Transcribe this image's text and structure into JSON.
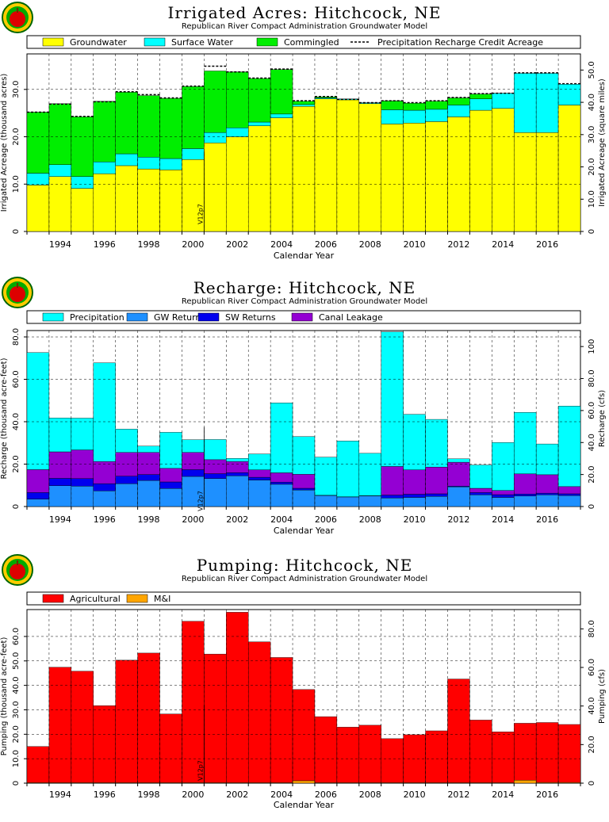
{
  "chart_data": [
    {
      "type": "bar",
      "title": "Irrigated Acres: Hitchcock, NE",
      "subtitle": "Republican River Compact Administration Groundwater Model",
      "xlabel": "Calendar Year",
      "ylabel": "Irrigated Acreage (thousand acres)",
      "y2label": "Irrigated Acreage (square miles)",
      "model_tag": "V12p7",
      "ylim": [
        0,
        37.5
      ],
      "yticks": [
        0,
        10.0,
        20.0,
        30.0
      ],
      "y2ticks": [
        "0",
        "10.0",
        "20.0",
        "30.0",
        "40.0",
        "50.0"
      ],
      "legend": [
        {
          "name": "Groundwater",
          "color": "#ffff00"
        },
        {
          "name": "Surface Water",
          "color": "#00ffff"
        },
        {
          "name": "Commingled",
          "color": "#00ee00"
        },
        {
          "name": "Precipitation Recharge Credit Acreage",
          "color": "dashed"
        }
      ],
      "x": [
        1993,
        1994,
        1995,
        1996,
        1997,
        1998,
        1999,
        2000,
        2001,
        2002,
        2003,
        2004,
        2005,
        2006,
        2007,
        2008,
        2009,
        2010,
        2011,
        2012,
        2013,
        2014,
        2015,
        2016,
        2017
      ],
      "xticks": [
        "1994",
        "1996",
        "1998",
        "2000",
        "2002",
        "2004",
        "2006",
        "2008",
        "2010",
        "2012",
        "2014",
        "2016"
      ],
      "series": [
        {
          "name": "Groundwater",
          "color": "#ffff00",
          "values": [
            9.8,
            11.6,
            9.1,
            12.2,
            13.9,
            13.2,
            13.0,
            15.2,
            18.7,
            20.0,
            22.3,
            24.0,
            26.4,
            28.0,
            27.8,
            27.0,
            22.7,
            22.9,
            23.2,
            24.2,
            25.6,
            26.0,
            20.9,
            20.9,
            26.7
          ]
        },
        {
          "name": "Surface Water",
          "color": "#00ffff",
          "values": [
            2.5,
            2.5,
            2.5,
            2.5,
            2.5,
            2.5,
            2.4,
            2.3,
            2.2,
            1.9,
            0.8,
            0.8,
            0.4,
            0.2,
            0.2,
            0.2,
            3.0,
            2.7,
            2.6,
            2.5,
            2.4,
            3.2,
            12.5,
            12.5,
            4.4
          ]
        },
        {
          "name": "Commingled",
          "color": "#00ee00",
          "values": [
            12.9,
            12.9,
            12.6,
            12.8,
            13.0,
            13.0,
            12.7,
            13.1,
            13.0,
            11.8,
            9.2,
            9.4,
            0.7,
            0.2,
            0,
            0,
            1.9,
            1.5,
            1.7,
            1.5,
            1.0,
            0,
            0,
            0,
            0
          ]
        }
      ],
      "dashed_line": [
        25.2,
        26.9,
        24.3,
        27.4,
        29.5,
        28.9,
        28.2,
        30.7,
        34.9,
        33.7,
        32.4,
        34.3,
        27.6,
        28.5,
        27.9,
        27.2,
        27.6,
        27.2,
        27.6,
        28.3,
        29.1,
        29.2,
        33.5,
        33.5,
        31.2
      ]
    },
    {
      "type": "bar",
      "title": "Recharge: Hitchcock, NE",
      "subtitle": "Republican River Compact Administration Groundwater Model",
      "xlabel": "Calendar Year",
      "ylabel": "Recharge (thousand acre-feet)",
      "y2label": "Recharge (cfs)",
      "model_tag": "V12p7",
      "ylim": [
        0,
        83
      ],
      "yticks": [
        0,
        20.0,
        40.0,
        60.0,
        80.0
      ],
      "y2ticks": [
        "0",
        "20.0",
        "40.0",
        "60.0",
        "80.0",
        "100"
      ],
      "legend": [
        {
          "name": "Precipitation",
          "color": "#00ffff"
        },
        {
          "name": "GW Returns",
          "color": "#1e90ff"
        },
        {
          "name": "SW Returns",
          "color": "#0000ee"
        },
        {
          "name": "Canal Leakage",
          "color": "#9400d3"
        }
      ],
      "x": [
        1993,
        1994,
        1995,
        1996,
        1997,
        1998,
        1999,
        2000,
        2001,
        2002,
        2003,
        2004,
        2005,
        2006,
        2007,
        2008,
        2009,
        2010,
        2011,
        2012,
        2013,
        2014,
        2015,
        2016,
        2017
      ],
      "xticks": [
        "1994",
        "1996",
        "1998",
        "2000",
        "2002",
        "2004",
        "2006",
        "2008",
        "2010",
        "2012",
        "2014",
        "2016"
      ],
      "series": [
        {
          "name": "GW Returns",
          "color": "#1e90ff",
          "values": [
            3.5,
            9.8,
            9.6,
            7.4,
            10.8,
            12.3,
            8.5,
            14.2,
            13.2,
            14.5,
            12.5,
            10.5,
            7.8,
            5.2,
            4.5,
            5.0,
            4.0,
            4.3,
            4.8,
            9.3,
            5.5,
            4.3,
            5.0,
            5.5,
            5.2
          ]
        },
        {
          "name": "SW Returns",
          "color": "#0000ee",
          "values": [
            3.1,
            3.5,
            3.6,
            3.4,
            3.5,
            2.8,
            3.1,
            3.2,
            2.3,
            1.5,
            1.3,
            1.0,
            0.8,
            0.1,
            0.1,
            0.1,
            1.4,
            1.5,
            1.2,
            0.3,
            1.1,
            1.3,
            0.9,
            0.8,
            0.8
          ]
        },
        {
          "name": "Canal Leakage",
          "color": "#9400d3",
          "values": [
            10.8,
            12.5,
            13.5,
            10.4,
            11.2,
            10.4,
            6.4,
            8.1,
            6.6,
            5.2,
            3.5,
            4.4,
            6.6,
            0,
            0,
            0,
            13.5,
            11.5,
            12.6,
            11.3,
            2.0,
            2.0,
            9.5,
            8.7,
            3.4
          ]
        },
        {
          "name": "Precipitation",
          "color": "#00ffff",
          "values": [
            55.2,
            16.0,
            15.0,
            46.6,
            11.0,
            3.0,
            17.0,
            6.0,
            9.5,
            1.5,
            7.5,
            33.0,
            17.8,
            18.0,
            26.3,
            20.0,
            63.5,
            26.2,
            22.5,
            1.6,
            11.0,
            22.6,
            29.0,
            14.5,
            38.0
          ]
        }
      ]
    },
    {
      "type": "bar",
      "title": "Pumping: Hitchcock, NE",
      "subtitle": "Republican River Compact Administration Groundwater Model",
      "xlabel": "Calendar Year",
      "ylabel": "Pumping (thousand acre-feet)",
      "y2label": "Pumping (cfs)",
      "model_tag": "V12p7",
      "ylim": [
        0,
        71
      ],
      "yticks": [
        0,
        10.0,
        20.0,
        30.0,
        40.0,
        50.0,
        60.0
      ],
      "y2ticks": [
        "0",
        "20.0",
        "40.0",
        "60.0",
        "80.0"
      ],
      "legend": [
        {
          "name": "Agricultural",
          "color": "#ff0000"
        },
        {
          "name": "M&I",
          "color": "#ffa500"
        }
      ],
      "x": [
        1993,
        1994,
        1995,
        1996,
        1997,
        1998,
        1999,
        2000,
        2001,
        2002,
        2003,
        2004,
        2005,
        2006,
        2007,
        2008,
        2009,
        2010,
        2011,
        2012,
        2013,
        2014,
        2015,
        2016,
        2017
      ],
      "xticks": [
        "1994",
        "1996",
        "1998",
        "2000",
        "2002",
        "2004",
        "2006",
        "2008",
        "2010",
        "2012",
        "2014",
        "2016"
      ],
      "series": [
        {
          "name": "M&I",
          "color": "#ffa500",
          "values": [
            0.2,
            0.2,
            0.2,
            0.2,
            0.2,
            0.2,
            0.2,
            0.2,
            0.2,
            0.2,
            0.2,
            0.2,
            1.0,
            0.2,
            0.2,
            0.2,
            0.2,
            0.2,
            0.2,
            0.2,
            0.2,
            0.2,
            1.2,
            0.3,
            0.3
          ]
        },
        {
          "name": "Agricultural",
          "color": "#ff0000",
          "values": [
            14.8,
            47.2,
            45.6,
            31.5,
            50.1,
            53.0,
            28.1,
            66.0,
            52.6,
            69.7,
            57.6,
            51.2,
            37.3,
            27.0,
            22.7,
            23.5,
            18.0,
            19.6,
            21.2,
            42.4,
            25.6,
            20.8,
            23.3,
            24.5,
            23.7
          ]
        }
      ]
    }
  ]
}
